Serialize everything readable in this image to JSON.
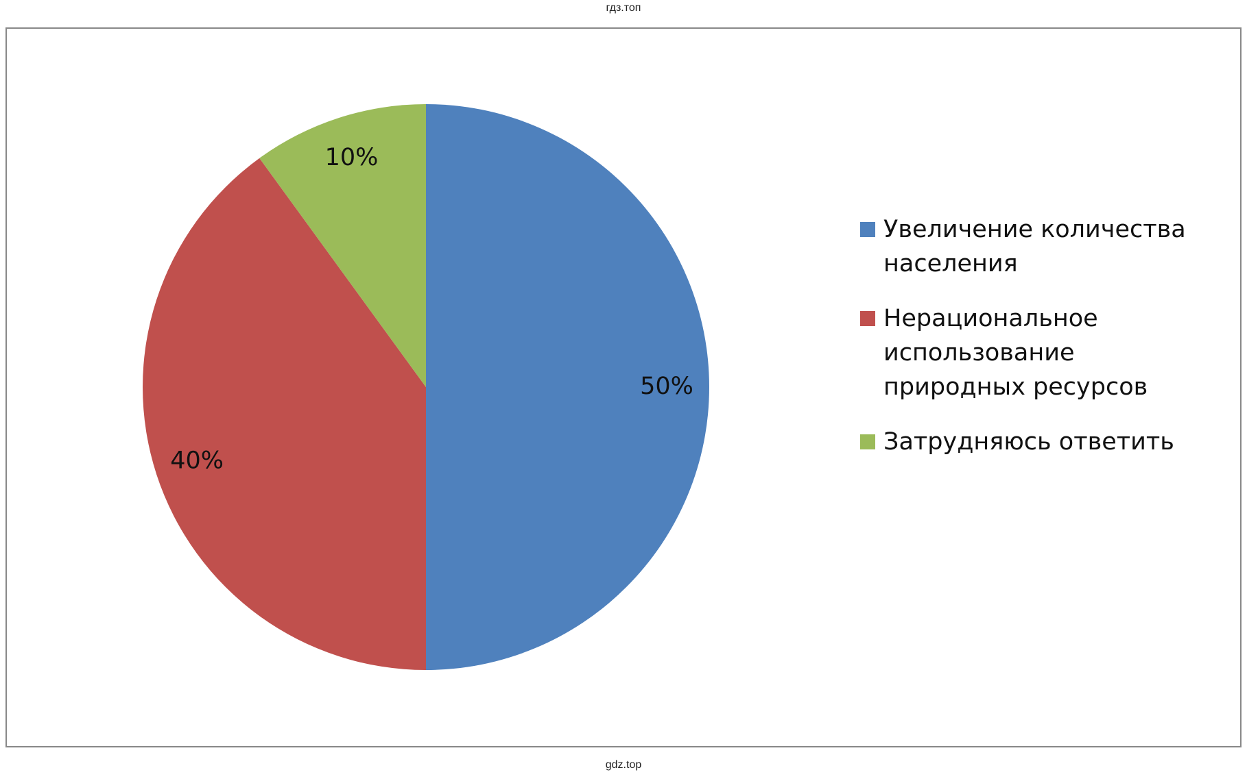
{
  "header": "гдз.топ",
  "footer": "gdz.top",
  "chart_data": {
    "type": "pie",
    "categories": [
      "Увеличение количества населения",
      "Нерациональное использование природных ресурсов",
      "Затрудняюсь ответить"
    ],
    "values": [
      50,
      40,
      10
    ],
    "value_labels": [
      "50%",
      "40%",
      "10%"
    ],
    "colors": [
      "#4f81bd",
      "#c0504d",
      "#9bbb59"
    ],
    "legend": "right"
  }
}
